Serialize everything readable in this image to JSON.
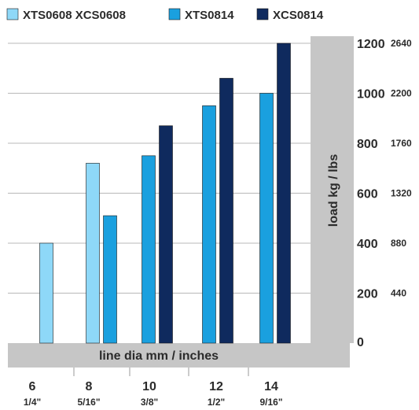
{
  "chart_data": {
    "type": "bar",
    "categories": [
      "6",
      "8",
      "10",
      "12",
      "14"
    ],
    "categories_sub": [
      "1/4\"",
      "5/16\"",
      "3/8\"",
      "1/2\"",
      "9/16\""
    ],
    "series": [
      {
        "name": "XTS0608 XCS0608",
        "color": "#8ed8f8",
        "values": [
          400,
          720,
          null,
          null,
          null
        ]
      },
      {
        "name": "XTS0814",
        "color": "#1aa0df",
        "values": [
          null,
          510,
          750,
          950,
          1000
        ]
      },
      {
        "name": "XCS0814",
        "color": "#0f2a5e",
        "values": [
          null,
          null,
          870,
          1060,
          1200
        ]
      }
    ],
    "xlabel": "line dia mm / inches",
    "ylabel": "load kg / lbs",
    "ylim": [
      0,
      1200
    ],
    "yticks": [
      "0",
      "200",
      "400",
      "600",
      "800",
      "1000",
      "1200"
    ],
    "yticks_secondary": [
      "440",
      "880",
      "1320",
      "1760",
      "2200",
      "2640"
    ],
    "grid": true,
    "legend_position": "top"
  }
}
